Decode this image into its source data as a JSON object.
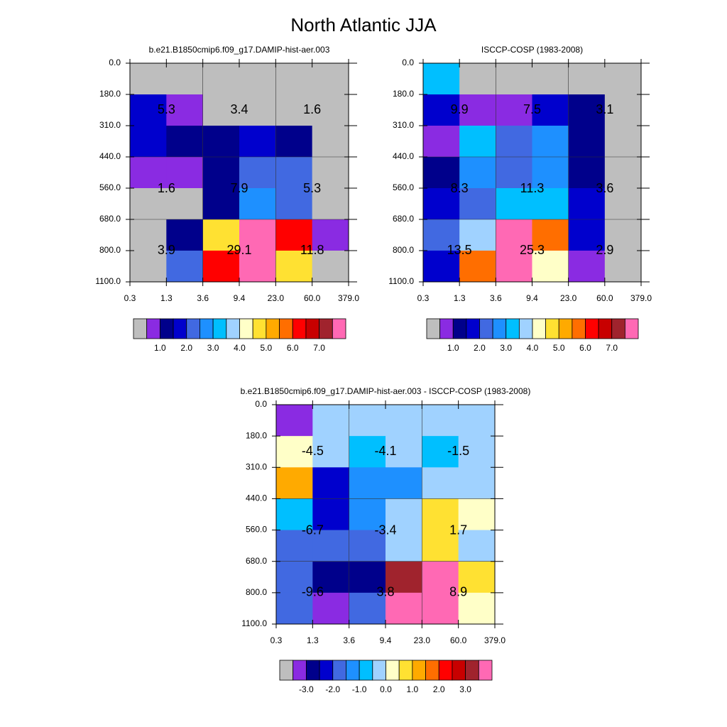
{
  "title": "North Atlantic JJA",
  "chart_data": [
    {
      "type": "heatmap",
      "title": "b.e21.B1850cmip6.f09_g17.DAMIP-hist-aer.003",
      "x_labels": [
        "0.3",
        "1.3",
        "3.6",
        "9.4",
        "23.0",
        "60.0",
        "379.0"
      ],
      "y_labels": [
        "0.0",
        "180.0",
        "310.0",
        "440.0",
        "560.0",
        "680.0",
        "800.0",
        "1100.0"
      ],
      "cells": [
        [
          "#bebebe",
          "#bebebe",
          "#bebebe",
          "#bebebe",
          "#bebebe",
          "#bebebe"
        ],
        [
          "#0000cd",
          "#8a2be2",
          "#bebebe",
          "#bebebe",
          "#bebebe",
          "#bebebe"
        ],
        [
          "#0000cd",
          "#00008b",
          "#00008b",
          "#0000cd",
          "#00008b",
          "#bebebe"
        ],
        [
          "#8a2be2",
          "#8a2be2",
          "#00008b",
          "#4169e1",
          "#4169e1",
          "#bebebe"
        ],
        [
          "#bebebe",
          "#bebebe",
          "#00008b",
          "#1e90ff",
          "#4169e1",
          "#bebebe"
        ],
        [
          "#bebebe",
          "#00008b",
          "#ffe132",
          "#ff69b4",
          "#ff0000",
          "#8a2be2"
        ],
        [
          "#bebebe",
          "#4169e1",
          "#ff0000",
          "#ff69b4",
          "#ffe132",
          "#bebebe"
        ]
      ],
      "annotations": [
        [
          "5.3",
          "3.4",
          "1.6"
        ],
        [
          "1.6",
          "7.9",
          "5.3"
        ],
        [
          "3.9",
          "29.1",
          "11.8"
        ]
      ],
      "colorbar": {
        "colors": [
          "#bebebe",
          "#8a2be2",
          "#00008b",
          "#0000cd",
          "#4169e1",
          "#1e90ff",
          "#00bfff",
          "#a0d2ff",
          "#ffffc8",
          "#ffe132",
          "#ffaa00",
          "#ff6e00",
          "#ff0000",
          "#c80000",
          "#a0232d",
          "#ff69b4"
        ],
        "labels": [
          "1.0",
          "2.0",
          "3.0",
          "4.0",
          "5.0",
          "6.0",
          "7.0"
        ]
      }
    },
    {
      "type": "heatmap",
      "title": "ISCCP-COSP (1983-2008)",
      "x_labels": [
        "0.3",
        "1.3",
        "3.6",
        "9.4",
        "23.0",
        "60.0",
        "379.0"
      ],
      "y_labels": [
        "0.0",
        "180.0",
        "310.0",
        "440.0",
        "560.0",
        "680.0",
        "800.0",
        "1100.0"
      ],
      "cells": [
        [
          "#00bfff",
          "#bebebe",
          "#bebebe",
          "#bebebe",
          "#bebebe",
          "#bebebe"
        ],
        [
          "#0000cd",
          "#8a2be2",
          "#8a2be2",
          "#0000cd",
          "#00008b",
          "#bebebe"
        ],
        [
          "#8a2be2",
          "#00bfff",
          "#4169e1",
          "#1e90ff",
          "#00008b",
          "#bebebe"
        ],
        [
          "#00008b",
          "#1e90ff",
          "#4169e1",
          "#1e90ff",
          "#00008b",
          "#bebebe"
        ],
        [
          "#0000cd",
          "#4169e1",
          "#00bfff",
          "#00bfff",
          "#0000cd",
          "#bebebe"
        ],
        [
          "#4169e1",
          "#a0d2ff",
          "#ff69b4",
          "#ff6e00",
          "#0000cd",
          "#bebebe"
        ],
        [
          "#0000cd",
          "#ff6e00",
          "#ff69b4",
          "#ffffc8",
          "#8a2be2",
          "#bebebe"
        ]
      ],
      "annotations": [
        [
          "9.9",
          "7.5",
          "3.1"
        ],
        [
          "8.3",
          "11.3",
          "3.6"
        ],
        [
          "13.5",
          "25.3",
          "2.9"
        ]
      ],
      "colorbar": {
        "colors": [
          "#bebebe",
          "#8a2be2",
          "#00008b",
          "#0000cd",
          "#4169e1",
          "#1e90ff",
          "#00bfff",
          "#a0d2ff",
          "#ffffc8",
          "#ffe132",
          "#ffaa00",
          "#ff6e00",
          "#ff0000",
          "#c80000",
          "#a0232d",
          "#ff69b4"
        ],
        "labels": [
          "1.0",
          "2.0",
          "3.0",
          "4.0",
          "5.0",
          "6.0",
          "7.0"
        ]
      }
    },
    {
      "type": "heatmap",
      "title": "b.e21.B1850cmip6.f09_g17.DAMIP-hist-aer.003 - ISCCP-COSP (1983-2008)",
      "x_labels": [
        "0.3",
        "1.3",
        "3.6",
        "9.4",
        "23.0",
        "60.0",
        "379.0"
      ],
      "y_labels": [
        "0.0",
        "180.0",
        "310.0",
        "440.0",
        "560.0",
        "680.0",
        "800.0",
        "1100.0"
      ],
      "cells": [
        [
          "#8a2be2",
          "#a0d2ff",
          "#a0d2ff",
          "#a0d2ff",
          "#a0d2ff",
          "#a0d2ff"
        ],
        [
          "#ffffc8",
          "#a0d2ff",
          "#00bfff",
          "#a0d2ff",
          "#00bfff",
          "#a0d2ff"
        ],
        [
          "#ffaa00",
          "#0000cd",
          "#1e90ff",
          "#1e90ff",
          "#a0d2ff",
          "#a0d2ff"
        ],
        [
          "#00bfff",
          "#0000cd",
          "#1e90ff",
          "#a0d2ff",
          "#ffe132",
          "#ffffc8"
        ],
        [
          "#4169e1",
          "#4169e1",
          "#4169e1",
          "#a0d2ff",
          "#ffe132",
          "#a0d2ff"
        ],
        [
          "#4169e1",
          "#00008b",
          "#00008b",
          "#a0232d",
          "#ff69b4",
          "#ffe132"
        ],
        [
          "#4169e1",
          "#8a2be2",
          "#4169e1",
          "#ff69b4",
          "#ff69b4",
          "#ffffc8"
        ]
      ],
      "annotations": [
        [
          "-4.5",
          "-4.1",
          "-1.5"
        ],
        [
          "-6.7",
          "-3.4",
          "1.7"
        ],
        [
          "-9.6",
          "3.8",
          "8.9"
        ]
      ],
      "colorbar": {
        "colors": [
          "#bebebe",
          "#8a2be2",
          "#00008b",
          "#0000cd",
          "#4169e1",
          "#1e90ff",
          "#00bfff",
          "#a0d2ff",
          "#ffffc8",
          "#ffe132",
          "#ffaa00",
          "#ff6e00",
          "#ff0000",
          "#c80000",
          "#a0232d",
          "#ff69b4"
        ],
        "labels": [
          "-3.0",
          "-2.0",
          "-1.0",
          "0.0",
          "1.0",
          "2.0",
          "3.0"
        ]
      }
    }
  ]
}
